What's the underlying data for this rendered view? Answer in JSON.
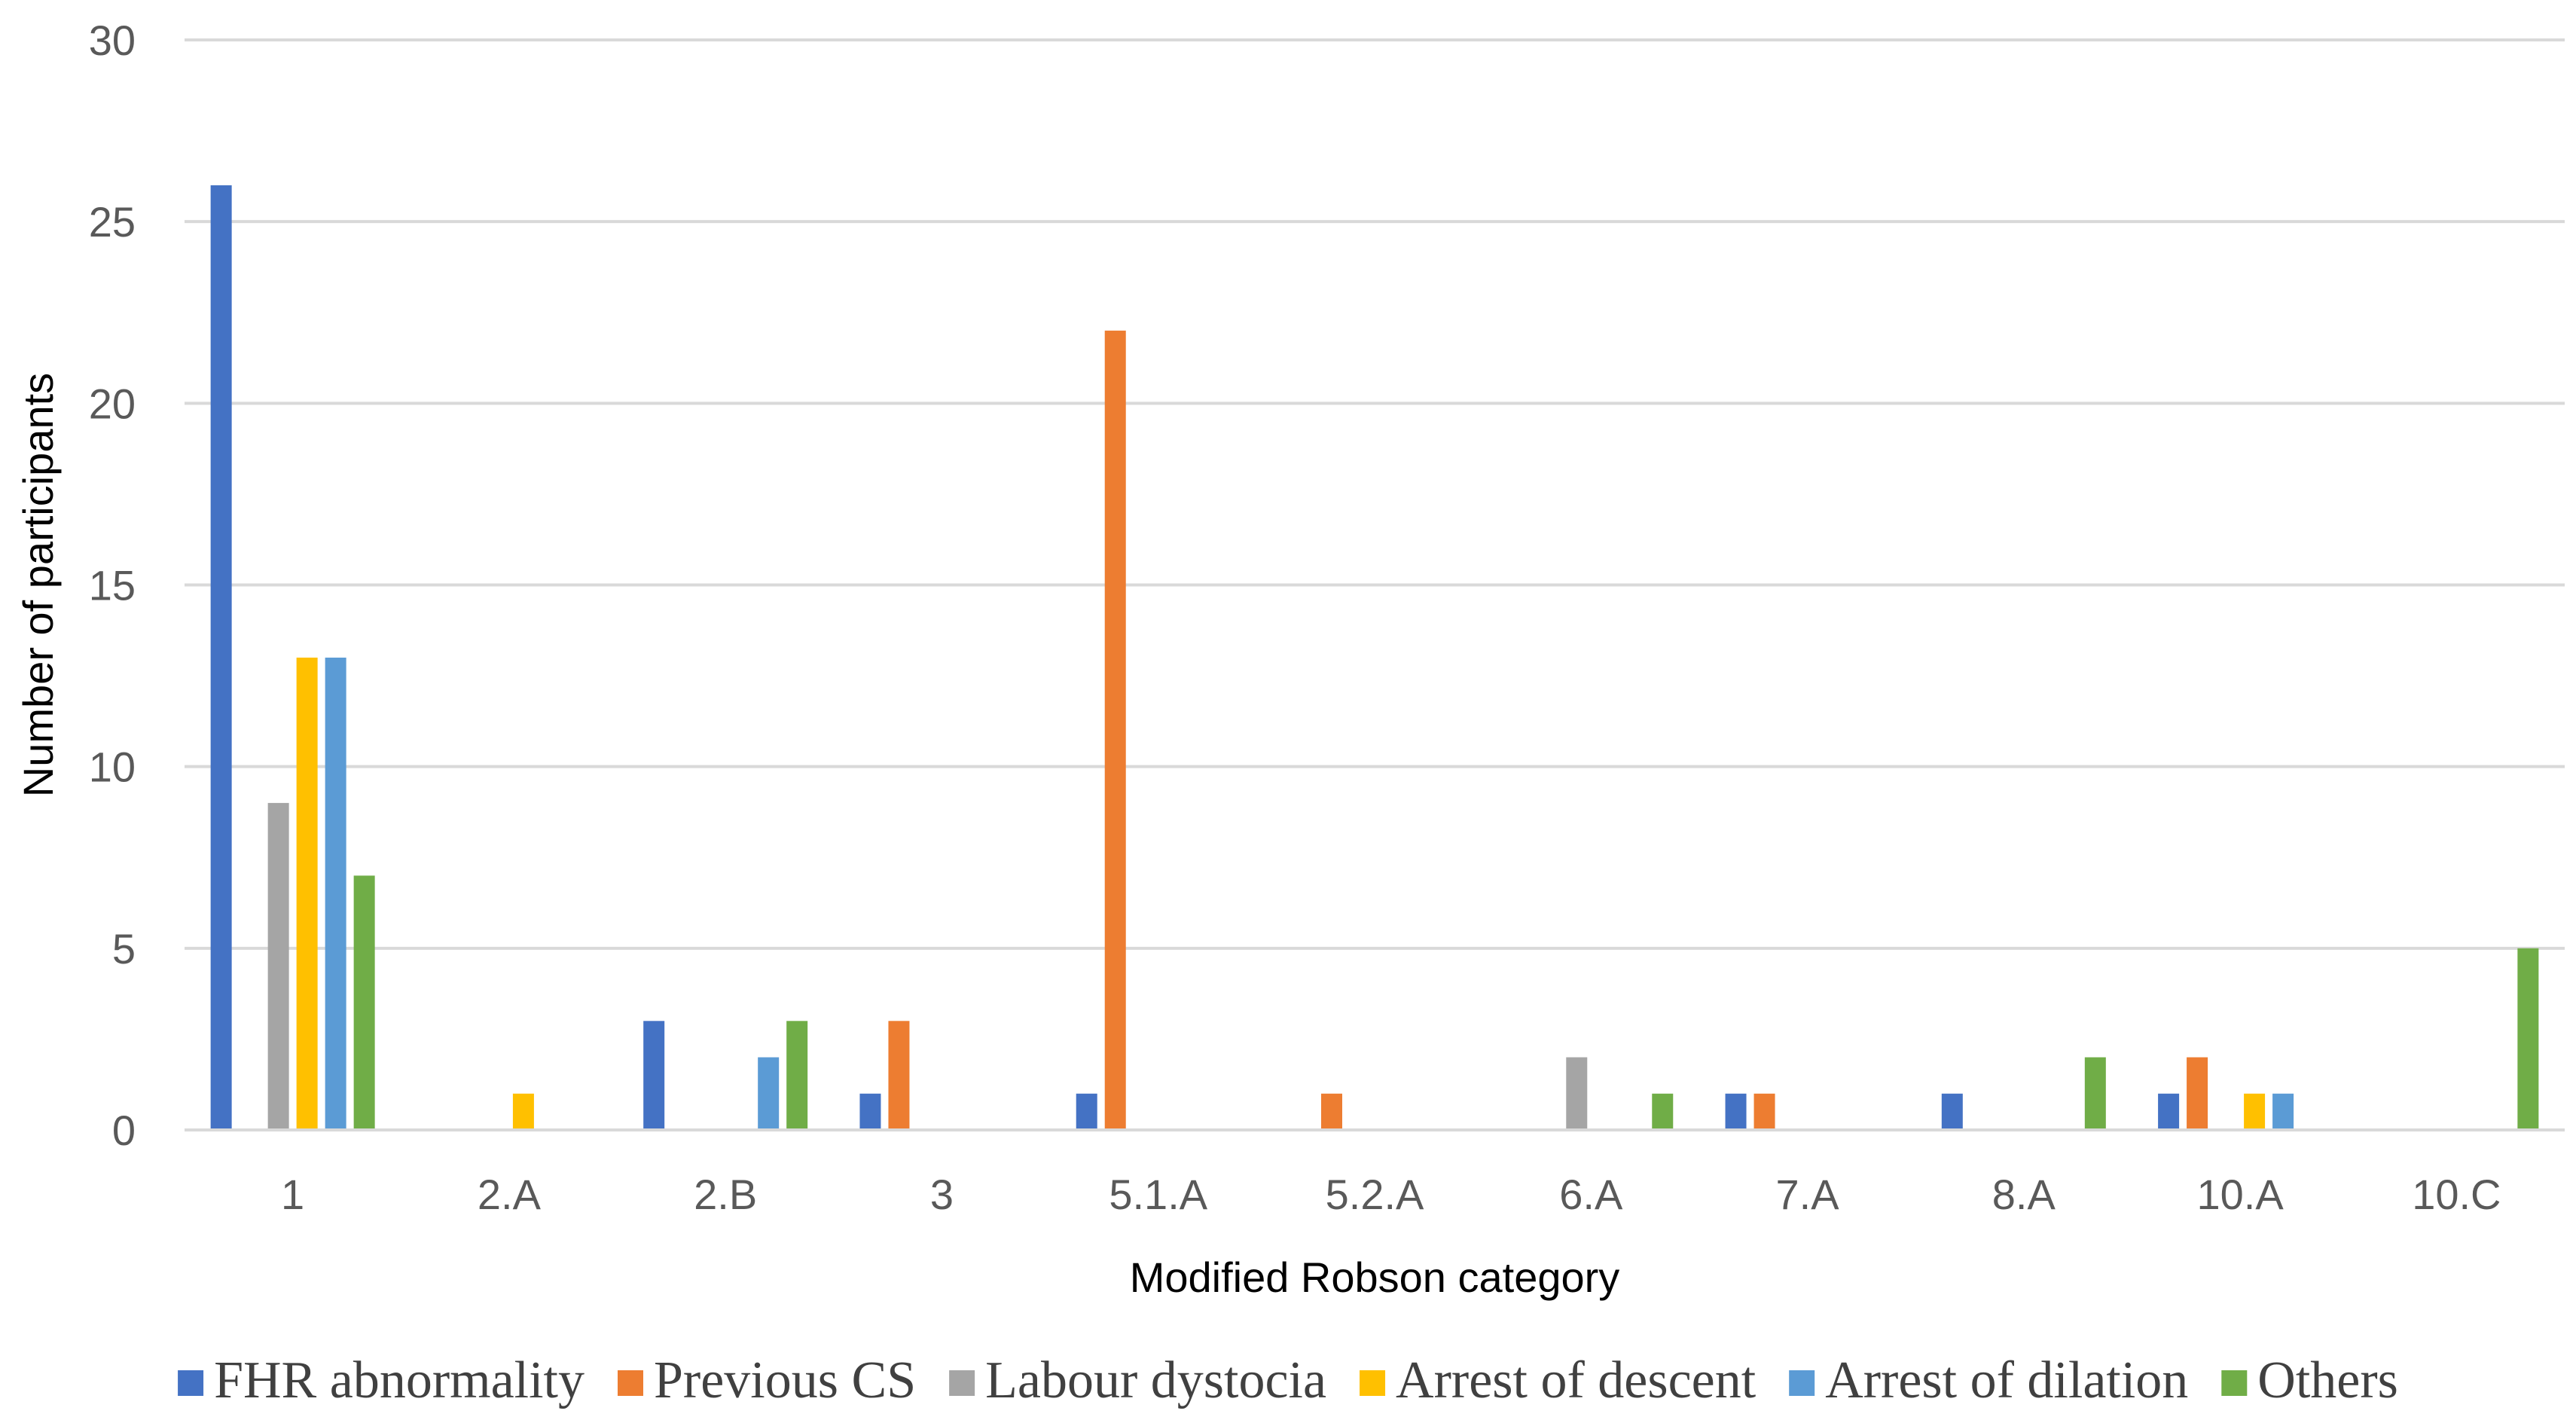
{
  "chart_data": {
    "type": "bar",
    "title": "",
    "xlabel": "Modified Robson category",
    "ylabel": "Number of participants",
    "ylim": [
      0,
      30
    ],
    "yticks": [
      "0",
      "5",
      "10",
      "15",
      "20",
      "25",
      "30"
    ],
    "grid": true,
    "legend_position": "bottom",
    "categories": [
      "1",
      "2.A",
      "2.B",
      "3",
      "5.1.A",
      "5.2.A",
      "6.A",
      "7.A",
      "8.A",
      "10.A",
      "10.C"
    ],
    "series": [
      {
        "name": "FHR abnormality",
        "color": "#4472C4",
        "values": [
          26,
          0,
          3,
          1,
          1,
          0,
          0,
          1,
          1,
          1,
          0
        ]
      },
      {
        "name": "Previous CS",
        "color": "#ED7D31",
        "values": [
          0,
          0,
          0,
          3,
          22,
          1,
          0,
          1,
          0,
          2,
          0
        ]
      },
      {
        "name": "Labour dystocia",
        "color": "#A5A5A5",
        "values": [
          9,
          0,
          0,
          0,
          0,
          0,
          2,
          0,
          0,
          0,
          0
        ]
      },
      {
        "name": "Arrest of descent",
        "color": "#FFC000",
        "values": [
          13,
          1,
          0,
          0,
          0,
          0,
          0,
          0,
          0,
          1,
          0
        ]
      },
      {
        "name": "Arrest of dilation",
        "color": "#5B9BD5",
        "values": [
          13,
          0,
          2,
          0,
          0,
          0,
          0,
          0,
          0,
          1,
          0
        ]
      },
      {
        "name": "Others",
        "color": "#70AD47",
        "values": [
          7,
          0,
          3,
          0,
          0,
          0,
          1,
          0,
          2,
          0,
          5
        ]
      }
    ]
  }
}
